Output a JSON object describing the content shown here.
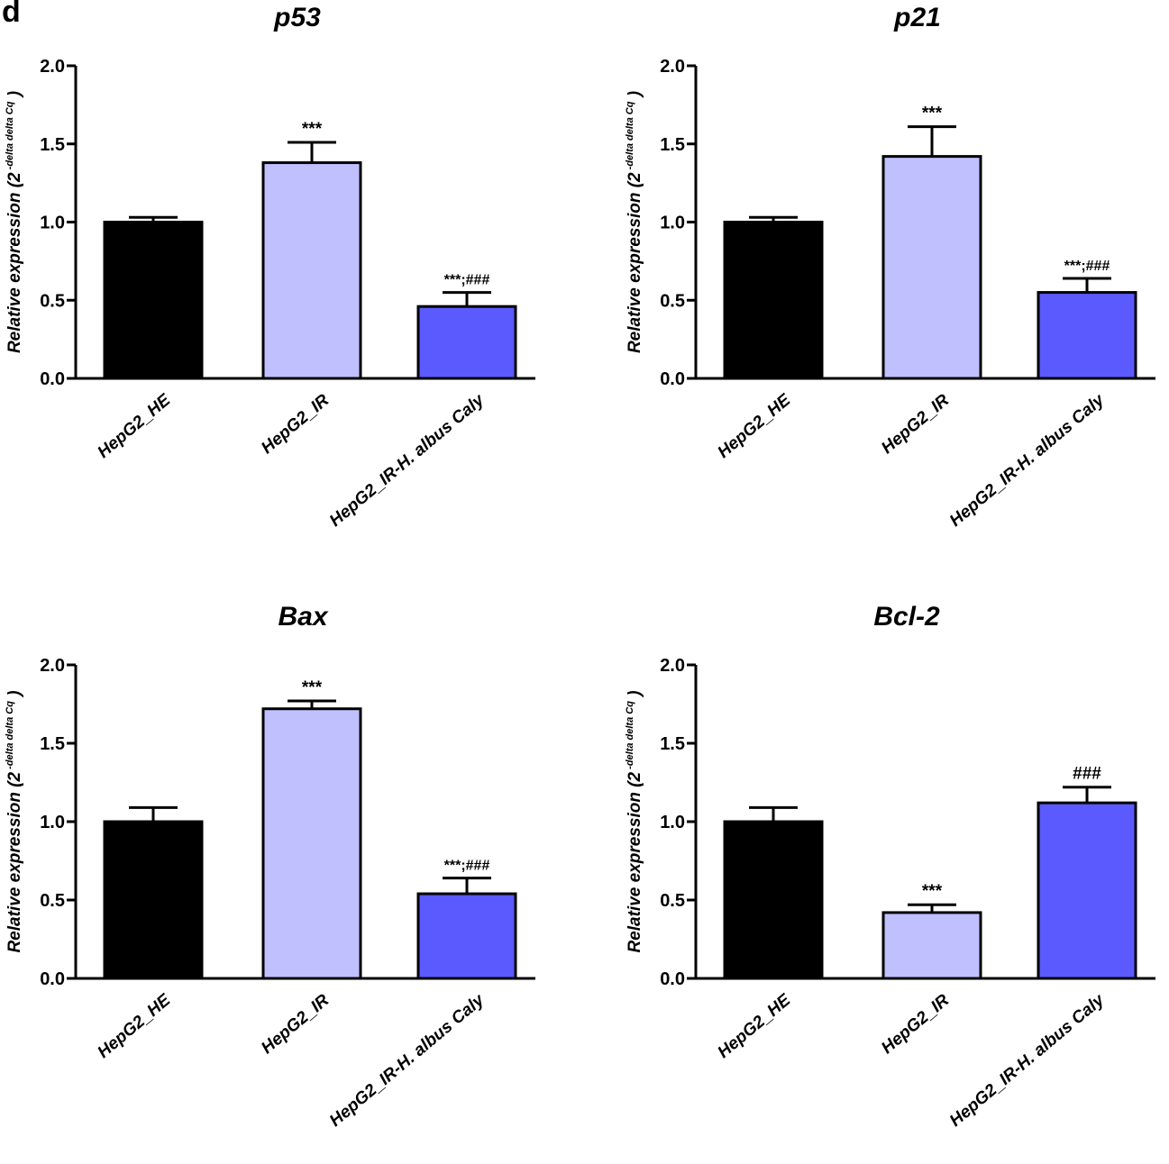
{
  "panel_letter": "d",
  "colors": {
    "HepG2_HE": "#000000",
    "HepG2_IR": "#c0c0ff",
    "HepG2_IR-H. albus Caly": "#5a5aff"
  },
  "chart_data": [
    {
      "type": "bar",
      "title": "p53",
      "categories": [
        "HepG2_HE",
        "HepG2_IR",
        "HepG2_IR-H. albus Caly"
      ],
      "values": [
        1.0,
        1.38,
        0.46
      ],
      "errors": [
        0.03,
        0.13,
        0.09
      ],
      "annotations": [
        "",
        "***",
        "***;###"
      ],
      "ylabel": "Relative expression (2",
      "ylabel_sup": "-delta delta Cq",
      "ylabel_close": ")",
      "ylim": [
        0,
        2.0
      ],
      "yticks": [
        "0.0",
        "0.5",
        "1.0",
        "1.5",
        "2.0"
      ]
    },
    {
      "type": "bar",
      "title": "p21",
      "categories": [
        "HepG2_HE",
        "HepG2_IR",
        "HepG2_IR-H. albus Caly"
      ],
      "values": [
        1.0,
        1.42,
        0.55
      ],
      "errors": [
        0.03,
        0.19,
        0.09
      ],
      "annotations": [
        "",
        "***",
        "***;###"
      ],
      "ylabel": "Relative expression (2",
      "ylabel_sup": "-delta delta Cq",
      "ylabel_close": ")",
      "ylim": [
        0,
        2.0
      ],
      "yticks": [
        "0.0",
        "0.5",
        "1.0",
        "1.5",
        "2.0"
      ]
    },
    {
      "type": "bar",
      "title": "Bax",
      "categories": [
        "HepG2_HE",
        "HepG2_IR",
        "HepG2_IR-H. albus Caly"
      ],
      "values": [
        1.0,
        1.72,
        0.54
      ],
      "errors": [
        0.09,
        0.05,
        0.1
      ],
      "annotations": [
        "",
        "***",
        "***;###"
      ],
      "ylabel": "Relative expression (2",
      "ylabel_sup": "-delta delta Cq",
      "ylabel_close": ")",
      "ylim": [
        0,
        2.0
      ],
      "yticks": [
        "0.0",
        "0.5",
        "1.0",
        "1.5",
        "2.0"
      ]
    },
    {
      "type": "bar",
      "title": "Bcl-2",
      "categories": [
        "HepG2_HE",
        "HepG2_IR",
        "HepG2_IR-H. albus Caly"
      ],
      "values": [
        1.0,
        0.42,
        1.12
      ],
      "errors": [
        0.09,
        0.05,
        0.1
      ],
      "annotations": [
        "",
        "***",
        "###"
      ],
      "ylabel": "Relative expression (2",
      "ylabel_sup": "-delta delta Cq",
      "ylabel_close": ")",
      "ylim": [
        0,
        2.0
      ],
      "yticks": [
        "0.0",
        "0.5",
        "1.0",
        "1.5",
        "2.0"
      ]
    }
  ]
}
